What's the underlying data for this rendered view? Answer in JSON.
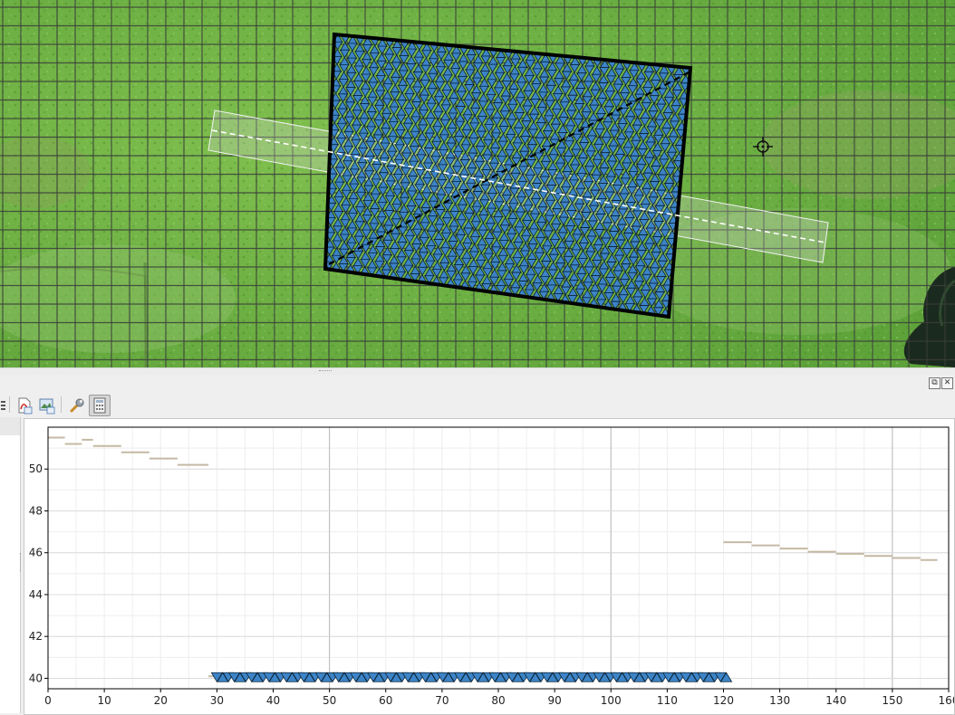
{
  "map": {
    "basemap": "satellite-grass",
    "grid_color": "#3a3f3a",
    "survey_outline_color": "#000000",
    "marker_fill": "#3d84c7",
    "marker_stroke": "#0c2235",
    "marker_gap_fill": "#8fc06a",
    "profile_line_color": "#ffffff",
    "profile_buffer_color": "#d8d8d8",
    "diagonal_line_color": "#000000",
    "crosshair": "crosshair-icon"
  },
  "panel": {
    "window_buttons": [
      {
        "name": "float-icon",
        "glyph": "⧉"
      },
      {
        "name": "close-icon",
        "glyph": "✕"
      }
    ],
    "toolbar": [
      {
        "name": "export-pdf-icon"
      },
      {
        "name": "export-image-icon"
      },
      {
        "name": "settings-wrench-icon"
      },
      {
        "name": "calculator-icon",
        "active": true
      }
    ]
  },
  "chart_data": {
    "type": "line",
    "xlim": [
      0,
      160
    ],
    "ylim": [
      39.5,
      52.0
    ],
    "xticks": [
      0,
      10,
      20,
      30,
      40,
      50,
      60,
      70,
      80,
      90,
      100,
      110,
      120,
      130,
      140,
      150,
      160
    ],
    "yticks": [
      40,
      42,
      44,
      46,
      48,
      50
    ],
    "grid": true,
    "line_color": "#c4b9a3",
    "marker_color": "#3d84c7",
    "series": [
      {
        "segments": [
          [
            0,
            51.5,
            3,
            51.5
          ],
          [
            3,
            51.2,
            6,
            51.2
          ],
          [
            6,
            51.4,
            8,
            51.4
          ],
          [
            8,
            51.1,
            13,
            51.1
          ],
          [
            13,
            50.8,
            18,
            50.8
          ],
          [
            18,
            50.5,
            23,
            50.5
          ],
          [
            23,
            50.2,
            28.5,
            50.2
          ],
          [
            28.5,
            40.1,
            30,
            40.1
          ],
          [
            120,
            46.5,
            125,
            46.5
          ],
          [
            125,
            46.35,
            130,
            46.35
          ],
          [
            130,
            46.2,
            135,
            46.2
          ],
          [
            135,
            46.05,
            140,
            46.05
          ],
          [
            140,
            45.95,
            145,
            45.95
          ],
          [
            145,
            45.85,
            150,
            45.85
          ],
          [
            150,
            45.75,
            155,
            45.75
          ],
          [
            155,
            45.65,
            158,
            45.65
          ]
        ]
      },
      {
        "markers": {
          "x_start": 30,
          "x_end": 120.5,
          "count": 89,
          "y": 40.05
        }
      }
    ]
  }
}
